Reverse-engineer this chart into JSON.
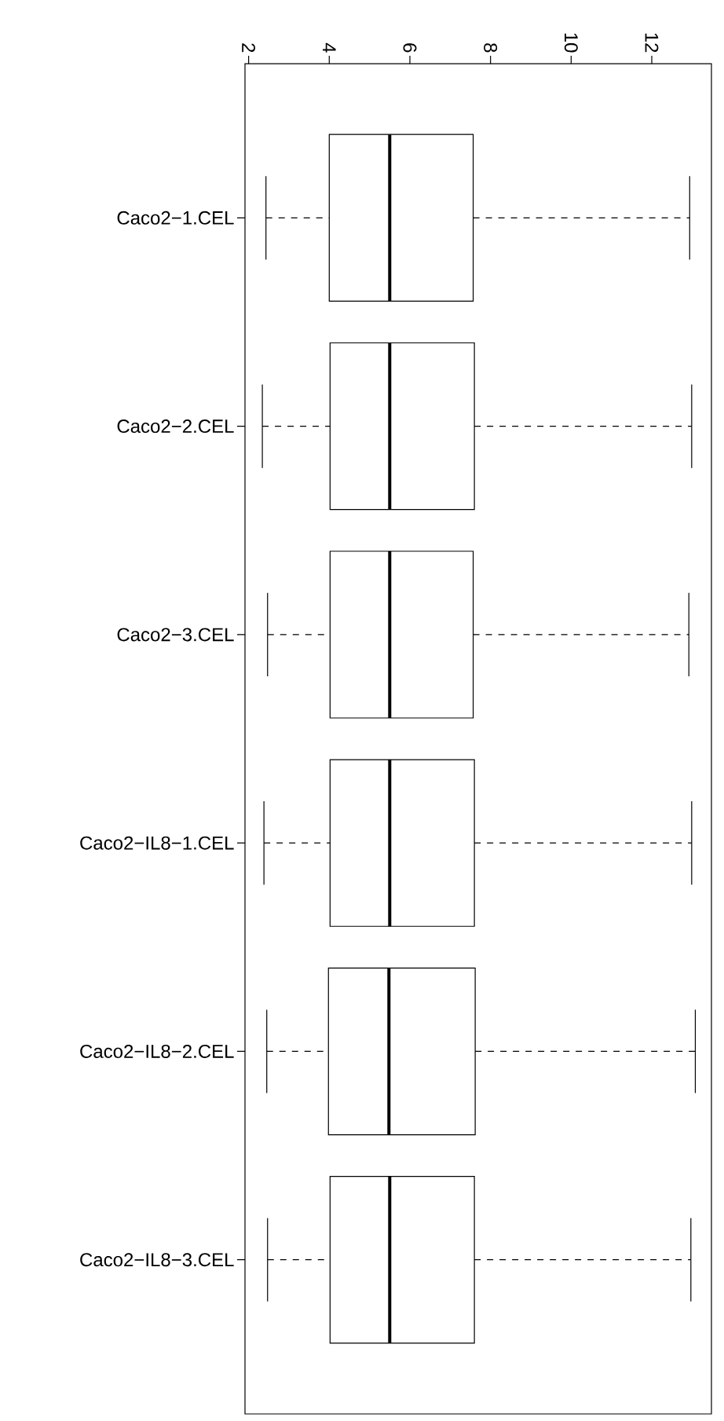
{
  "chart_data": {
    "type": "box",
    "orientation": "horizontal",
    "categories": [
      "Caco2−1.CEL",
      "Caco2−2.CEL",
      "Caco2−3.CEL",
      "Caco2−IL8−1.CEL",
      "Caco2−IL8−2.CEL",
      "Caco2−IL8−3.CEL"
    ],
    "boxes": [
      {
        "low": 2.43,
        "q1": 4.0,
        "median": 5.5,
        "q3": 7.57,
        "high": 12.94
      },
      {
        "low": 2.34,
        "q1": 4.02,
        "median": 5.5,
        "q3": 7.6,
        "high": 12.99
      },
      {
        "low": 2.47,
        "q1": 4.02,
        "median": 5.5,
        "q3": 7.57,
        "high": 12.92
      },
      {
        "low": 2.38,
        "q1": 4.02,
        "median": 5.5,
        "q3": 7.6,
        "high": 12.99
      },
      {
        "low": 2.45,
        "q1": 3.98,
        "median": 5.48,
        "q3": 7.62,
        "high": 13.08
      },
      {
        "low": 2.47,
        "q1": 4.02,
        "median": 5.5,
        "q3": 7.6,
        "high": 12.97
      }
    ],
    "xlim": [
      1.91,
      13.48
    ],
    "xticks": [
      2,
      4,
      6,
      8,
      10,
      12
    ]
  }
}
